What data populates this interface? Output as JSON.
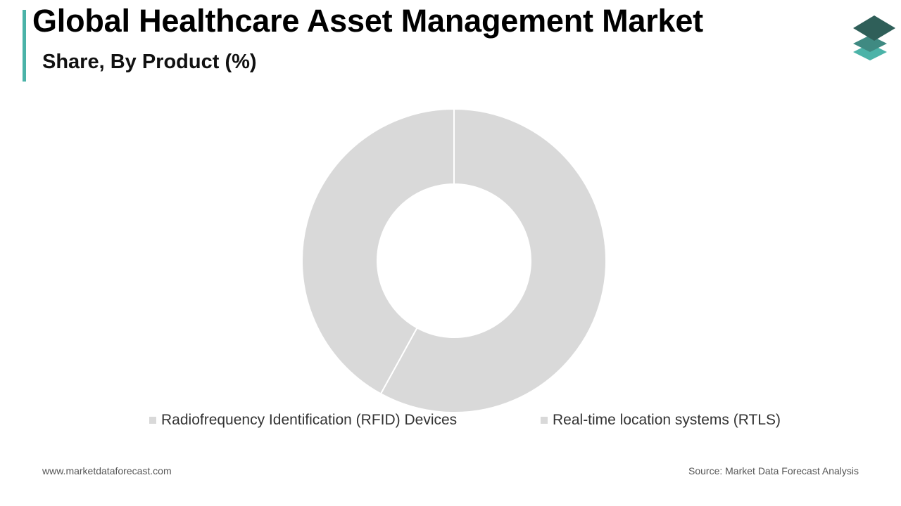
{
  "header": {
    "title": "Global Healthcare Asset Management Market",
    "subtitle": "Share, By Product (%)"
  },
  "footer": {
    "website": "www.marketdataforecast.com",
    "source": "Source: Market Data Forecast Analysis"
  },
  "colors": {
    "accent": "#4bb3a8",
    "slice": "#d9d9d9",
    "logo_top": "#2f5f59",
    "logo_mid": "#3f8a82",
    "logo_bottom": "#4bb3a8"
  },
  "icons": {
    "logo": "layered-stack-logo-icon"
  },
  "chart_data": {
    "type": "pie",
    "style": "donut",
    "categories": [
      "Radiofrequency Identification (RFID) Devices",
      "Real-time location systems (RTLS)"
    ],
    "values": [
      58,
      42
    ],
    "unit": "%",
    "legend_position": "bottom"
  }
}
